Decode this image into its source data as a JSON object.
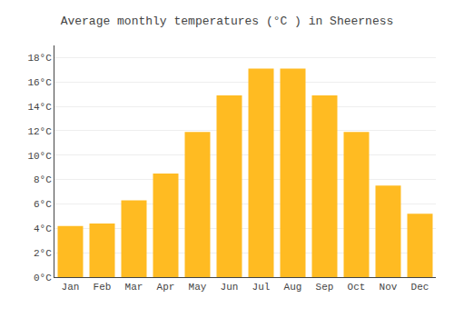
{
  "chart_data": {
    "type": "bar",
    "title": "Average monthly temperatures (°C ) in Sheerness",
    "categories": [
      "Jan",
      "Feb",
      "Mar",
      "Apr",
      "May",
      "Jun",
      "Jul",
      "Aug",
      "Sep",
      "Oct",
      "Nov",
      "Dec"
    ],
    "values": [
      4.2,
      4.4,
      6.3,
      8.5,
      11.9,
      14.9,
      17.1,
      17.1,
      14.9,
      11.9,
      7.5,
      5.2
    ],
    "color": "#FFBB22",
    "ylim": [
      0,
      19
    ],
    "yticks": [
      {
        "value": 0,
        "label": "0°C"
      },
      {
        "value": 2,
        "label": "2°C"
      },
      {
        "value": 4,
        "label": "4°C"
      },
      {
        "value": 6,
        "label": "6°C"
      },
      {
        "value": 8,
        "label": "8°C"
      },
      {
        "value": 10,
        "label": "10°C"
      },
      {
        "value": 12,
        "label": "12°C"
      },
      {
        "value": 14,
        "label": "14°C"
      },
      {
        "value": 16,
        "label": "16°C"
      },
      {
        "value": 18,
        "label": "18°C"
      }
    ],
    "grid": true
  }
}
